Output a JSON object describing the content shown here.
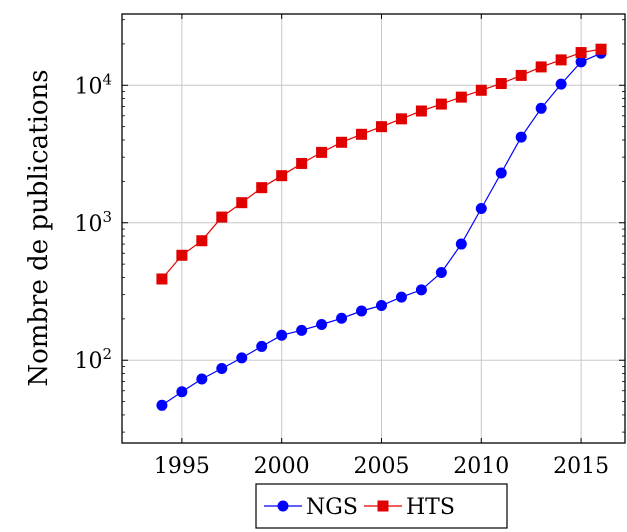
{
  "chart_data": {
    "type": "line",
    "title": "",
    "xlabel": "",
    "ylabel": "Nombre de publications",
    "y_scale": "log",
    "grid": true,
    "legend_position": "bottom",
    "xlim": [
      1992,
      2017.2
    ],
    "ylim": [
      25,
      33000
    ],
    "x_ticks": [
      "1995",
      "2000",
      "2005",
      "2010",
      "2015"
    ],
    "y_ticks": [
      {
        "value": 100,
        "base": "10",
        "exp": "2"
      },
      {
        "value": 1000,
        "base": "10",
        "exp": "3"
      },
      {
        "value": 10000,
        "base": "10",
        "exp": "4"
      }
    ],
    "x": [
      1994,
      1995,
      1996,
      1997,
      1998,
      1999,
      2000,
      2001,
      2002,
      2003,
      2004,
      2005,
      2006,
      2007,
      2008,
      2009,
      2010,
      2011,
      2012,
      2013,
      2014,
      2015,
      2016
    ],
    "series": [
      {
        "name": "NGS",
        "color": "#0000ff",
        "marker": "circle",
        "values": [
          47,
          59,
          73,
          87,
          104,
          126,
          152,
          165,
          182,
          202,
          228,
          250,
          288,
          325,
          435,
          700,
          1270,
          2300,
          4200,
          6800,
          10200,
          14800,
          17100
        ]
      },
      {
        "name": "HTS",
        "color": "#e00000",
        "marker": "square",
        "values": [
          390,
          580,
          740,
          1100,
          1400,
          1800,
          2200,
          2700,
          3250,
          3850,
          4400,
          5000,
          5700,
          6500,
          7300,
          8200,
          9200,
          10300,
          11800,
          13600,
          15300,
          17300,
          18300
        ]
      }
    ]
  }
}
